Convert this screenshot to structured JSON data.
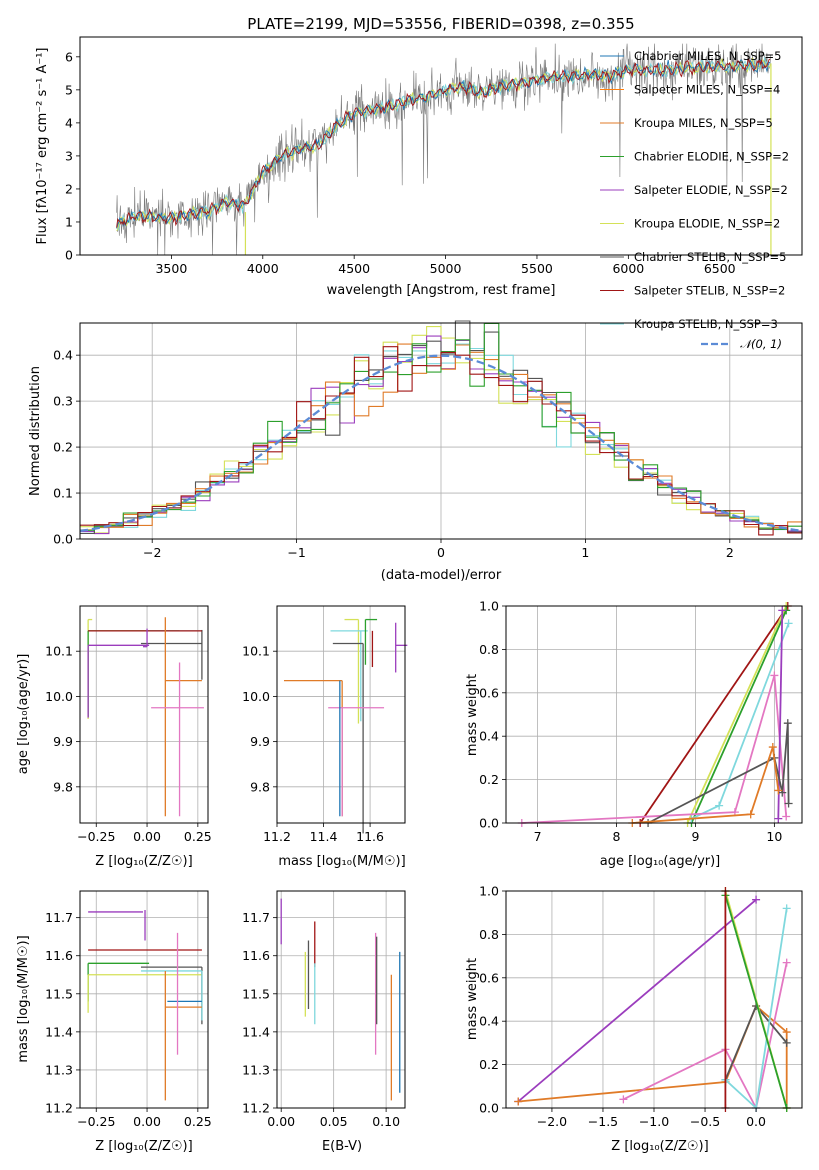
{
  "colors": {
    "chabrier_miles": "#1f77b4",
    "salpeter_miles": "#ff7f0e",
    "kroupa_miles": "#e07b28",
    "chabrier_elodie": "#2ca02c",
    "salpeter_elodie": "#9b3dbd",
    "kroupa_elodie": "#d4e157",
    "chabrier_stelib": "#555555",
    "salpeter_stelib": "#a01515",
    "kroupa_stelib": "#7fd8dd",
    "pink": "#e377c2",
    "normal": "#5b8bd6"
  },
  "chart_data": [
    {
      "id": "spectrum",
      "type": "line",
      "title": "PLATE=2199, MJD=53556, FIBERID=0398, z=0.355",
      "xlabel": "wavelength [Angstrom, rest frame]",
      "ylabel": "Flux [fλ10⁻¹⁷ erg cm⁻² s⁻¹ A⁻¹]",
      "xlim": [
        3000,
        6950
      ],
      "ylim": [
        0,
        6.6
      ],
      "xticks": [
        "3500",
        "4000",
        "4500",
        "5000",
        "5500",
        "6000",
        "6500"
      ],
      "yticks": [
        "0",
        "1",
        "2",
        "3",
        "4",
        "5",
        "6"
      ],
      "legend": [
        "Chabrier MILES, N_SSP=5",
        "Salpeter MILES, N_SSP=4",
        "Kroupa MILES, N_SSP=5",
        "Chabrier ELODIE, N_SSP=2",
        "Salpeter ELODIE, N_SSP=2",
        "Kroupa ELODIE, N_SSP=2",
        "Chabrier STELIB, N_SSP=5",
        "Salpeter STELIB, N_SSP=2",
        "Kroupa STELIB, N_SSP=3"
      ],
      "legend_location": "top-right",
      "model_continuum": [
        [
          3200,
          0.9
        ],
        [
          3300,
          1.2
        ],
        [
          3500,
          1.1
        ],
        [
          3600,
          1.25
        ],
        [
          3700,
          1.3
        ],
        [
          3800,
          1.6
        ],
        [
          3900,
          1.5
        ],
        [
          4000,
          2.5
        ],
        [
          4100,
          3.0
        ],
        [
          4200,
          3.2
        ],
        [
          4300,
          3.3
        ],
        [
          4400,
          3.9
        ],
        [
          4500,
          4.3
        ],
        [
          4600,
          4.4
        ],
        [
          4700,
          4.5
        ],
        [
          4800,
          4.7
        ],
        [
          4900,
          4.8
        ],
        [
          5000,
          5.0
        ],
        [
          5100,
          5.1
        ],
        [
          5200,
          4.9
        ],
        [
          5300,
          5.1
        ],
        [
          5400,
          5.2
        ],
        [
          5500,
          5.3
        ],
        [
          5600,
          5.4
        ],
        [
          5700,
          5.4
        ],
        [
          5800,
          5.5
        ],
        [
          5900,
          5.4
        ],
        [
          6000,
          5.6
        ],
        [
          6200,
          5.6
        ],
        [
          6400,
          5.7
        ],
        [
          6600,
          5.7
        ],
        [
          6780,
          5.8
        ]
      ]
    },
    {
      "id": "residuals",
      "type": "histogram",
      "xlabel": "(data-model)/error",
      "ylabel": "Normed distribution",
      "xlim": [
        -2.5,
        2.5
      ],
      "ylim": [
        0,
        0.47
      ],
      "xticks": [
        "−2",
        "−1",
        "0",
        "1",
        "2"
      ],
      "yticks": [
        "0.0",
        "0.1",
        "0.2",
        "0.3",
        "0.4"
      ],
      "legend": [
        "𝒩(0, 1)"
      ],
      "legend_location": "top-right",
      "bin_width": 0.1,
      "grid": true
    },
    {
      "id": "z-age",
      "type": "errorbar",
      "xlabel": "Z [log₁₀(Z/Z☉)]",
      "ylabel": "age  [log₁₀(age/yr)]",
      "xlim": [
        -0.33,
        0.3
      ],
      "ylim": [
        9.72,
        10.2
      ],
      "xticks": [
        "−0.25",
        "0.00",
        "0.25"
      ],
      "yticks": [
        "9.8",
        "9.9",
        "10.0",
        "10.1"
      ],
      "points": [
        {
          "x": -0.29,
          "y": 10.17,
          "xerr": [
            0.0,
            0.02
          ],
          "yerr": [
            0.22,
            0.0
          ],
          "c": "kroupa_elodie"
        },
        {
          "x": -0.29,
          "y": 10.145,
          "xerr": [
            0.0,
            0.45
          ],
          "yerr": [
            0.19,
            0.0
          ],
          "c": "chabrier_elodie"
        },
        {
          "x": -0.29,
          "y": 10.113,
          "xerr": [
            0.0,
            0.3
          ],
          "yerr": [
            0.16,
            0.0
          ],
          "c": "salpeter_elodie"
        },
        {
          "x": 0.27,
          "y": 10.145,
          "xerr": [
            0.27,
            0.0
          ],
          "yerr": [
            0.0,
            0.0
          ],
          "c": "kroupa_stelib"
        },
        {
          "x": 0.27,
          "y": 10.117,
          "xerr": [
            0.3,
            0.0
          ],
          "yerr": [
            0.08,
            0.03
          ],
          "c": "chabrier_stelib"
        },
        {
          "x": 0.27,
          "y": 10.145,
          "xerr": [
            0.56,
            0.0
          ],
          "yerr": [
            0.0,
            0.0
          ],
          "c": "salpeter_stelib"
        },
        {
          "x": 0.09,
          "y": 10.035,
          "xerr": [
            0.0,
            0.18
          ],
          "yerr": [
            0.3,
            0.14
          ],
          "c": "kroupa_miles"
        },
        {
          "x": 0.16,
          "y": 9.975,
          "xerr": [
            0.14,
            0.12
          ],
          "yerr": [
            0.24,
            0.1
          ],
          "c": "pink"
        },
        {
          "x": 0.0,
          "y": 10.11,
          "xerr": [
            0.02,
            0.0
          ],
          "yerr": [
            0.0,
            0.04
          ],
          "c": "salpeter_elodie"
        }
      ]
    },
    {
      "id": "mass-age",
      "type": "errorbar",
      "xlabel": "mass [log₁₀(M/M☉)]",
      "ylabel": "",
      "xlim": [
        11.2,
        11.75
      ],
      "ylim": [
        9.72,
        10.2
      ],
      "xticks": [
        "11.2",
        "11.4",
        "11.6"
      ],
      "yticks": [
        "9.8",
        "9.9",
        "10.0",
        "10.1"
      ],
      "points": [
        {
          "x": 11.55,
          "y": 10.17,
          "xerr": [
            0.06,
            0.0
          ],
          "yerr": [
            0.23,
            0.0
          ],
          "c": "kroupa_elodie"
        },
        {
          "x": 11.56,
          "y": 10.145,
          "xerr": [
            0.13,
            0.03
          ],
          "yerr": [
            0.2,
            0.0
          ],
          "c": "kroupa_stelib"
        },
        {
          "x": 11.58,
          "y": 10.17,
          "xerr": [
            0.0,
            0.05
          ],
          "yerr": [
            0.1,
            0.0
          ],
          "c": "chabrier_elodie"
        },
        {
          "x": 11.57,
          "y": 10.117,
          "xerr": [
            0.13,
            0.0
          ],
          "yerr": [
            0.42,
            0.0
          ],
          "c": "chabrier_stelib"
        },
        {
          "x": 11.61,
          "y": 10.145,
          "xerr": [
            0.0,
            0.0
          ],
          "yerr": [
            0.08,
            0.0
          ],
          "c": "salpeter_stelib"
        },
        {
          "x": 11.71,
          "y": 10.113,
          "xerr": [
            0.0,
            0.05
          ],
          "yerr": [
            0.06,
            0.05
          ],
          "c": "salpeter_elodie"
        },
        {
          "x": 11.48,
          "y": 10.035,
          "xerr": [
            0.25,
            0.0
          ],
          "yerr": [
            0.3,
            0.0
          ],
          "c": "kroupa_miles"
        },
        {
          "x": 11.48,
          "y": 9.975,
          "xerr": [
            0.06,
            0.18
          ],
          "yerr": [
            0.24,
            0.0
          ],
          "c": "pink"
        },
        {
          "x": 11.47,
          "y": 10.035,
          "xerr": [
            0.0,
            0.0
          ],
          "yerr": [
            0.3,
            0.0
          ],
          "c": "chabrier_miles"
        }
      ]
    },
    {
      "id": "age-weight",
      "type": "line",
      "xlabel": "age  [log₁₀(age/yr)]",
      "ylabel": "mass weight",
      "xlim": [
        6.6,
        10.35
      ],
      "ylim": [
        0,
        1.0
      ],
      "xticks": [
        "7",
        "8",
        "9",
        "10"
      ],
      "yticks": [
        "0.0",
        "0.2",
        "0.4",
        "0.6",
        "0.8",
        "1.0"
      ],
      "series": [
        {
          "c": "salpeter_stelib",
          "pts": [
            [
              8.3,
              0.0
            ],
            [
              10.17,
              1.0
            ]
          ]
        },
        {
          "c": "kroupa_elodie",
          "pts": [
            [
              8.9,
              0.0
            ],
            [
              10.15,
              1.0
            ]
          ]
        },
        {
          "c": "chabrier_elodie",
          "pts": [
            [
              8.95,
              0.0
            ],
            [
              10.15,
              0.98
            ]
          ]
        },
        {
          "c": "kroupa_stelib",
          "pts": [
            [
              8.95,
              0.02
            ],
            [
              9.3,
              0.08
            ],
            [
              10.18,
              0.92
            ]
          ]
        },
        {
          "c": "pink",
          "pts": [
            [
              6.8,
              0.0
            ],
            [
              9.5,
              0.05
            ],
            [
              10.0,
              0.68
            ],
            [
              10.15,
              0.03
            ]
          ]
        },
        {
          "c": "salpeter_elodie",
          "pts": [
            [
              10.05,
              0.02
            ],
            [
              10.1,
              0.98
            ]
          ]
        },
        {
          "c": "chabrier_stelib",
          "pts": [
            [
              8.4,
              0.0
            ],
            [
              10.0,
              0.3
            ],
            [
              10.1,
              0.14
            ],
            [
              10.17,
              0.46
            ],
            [
              10.18,
              0.09
            ]
          ]
        },
        {
          "c": "kroupa_miles",
          "pts": [
            [
              8.2,
              0.0
            ],
            [
              9.7,
              0.04
            ],
            [
              9.98,
              0.35
            ],
            [
              10.05,
              0.15
            ]
          ]
        }
      ]
    },
    {
      "id": "z-mass",
      "type": "errorbar",
      "xlabel": "Z [log₁₀(Z/Z☉)]",
      "ylabel": "mass [log₁₀(M/M☉)]",
      "xlim": [
        -0.33,
        0.3
      ],
      "ylim": [
        11.2,
        11.77
      ],
      "xticks": [
        "−0.25",
        "0.00",
        "0.25"
      ],
      "yticks": [
        "11.2",
        "11.3",
        "11.4",
        "11.5",
        "11.6",
        "11.7"
      ],
      "points": [
        {
          "x": -0.29,
          "y": 11.715,
          "xerr": [
            0.0,
            0.27
          ],
          "yerr": [
            0.0,
            0.0
          ],
          "c": "salpeter_elodie"
        },
        {
          "x": -0.29,
          "y": 11.615,
          "xerr": [
            0.0,
            0.56
          ],
          "yerr": [
            0.0,
            0.0
          ],
          "c": "salpeter_stelib"
        },
        {
          "x": -0.29,
          "y": 11.58,
          "xerr": [
            0.0,
            0.3
          ],
          "yerr": [
            0.1,
            0.0
          ],
          "c": "chabrier_elodie"
        },
        {
          "x": -0.29,
          "y": 11.55,
          "xerr": [
            0.0,
            0.56
          ],
          "yerr": [
            0.1,
            0.0
          ],
          "c": "kroupa_elodie"
        },
        {
          "x": 0.27,
          "y": 11.57,
          "xerr": [
            0.3,
            0.0
          ],
          "yerr": [
            0.15,
            0.0
          ],
          "c": "chabrier_stelib"
        },
        {
          "x": 0.27,
          "y": 11.56,
          "xerr": [
            0.3,
            0.0
          ],
          "yerr": [
            0.13,
            0.0
          ],
          "c": "kroupa_stelib"
        },
        {
          "x": 0.27,
          "y": 11.48,
          "xerr": [
            0.17,
            0.0
          ],
          "yerr": [
            0.0,
            0.0
          ],
          "c": "chabrier_miles"
        },
        {
          "x": 0.27,
          "y": 11.465,
          "xerr": [
            0.18,
            0.0
          ],
          "yerr": [
            0.0,
            0.0
          ],
          "c": "kroupa_miles"
        },
        {
          "x": 0.09,
          "y": 11.46,
          "xerr": [
            0.0,
            0.0
          ],
          "yerr": [
            0.24,
            0.1
          ],
          "c": "kroupa_miles"
        },
        {
          "x": 0.15,
          "y": 11.55,
          "xerr": [
            0.0,
            0.0
          ],
          "yerr": [
            0.21,
            0.11
          ],
          "c": "pink"
        },
        {
          "x": -0.01,
          "y": 11.72,
          "xerr": [
            0.0,
            0.0
          ],
          "yerr": [
            0.08,
            0.0
          ],
          "c": "salpeter_elodie"
        }
      ]
    },
    {
      "id": "ebv-mass",
      "type": "errorbar",
      "xlabel": "E(B-V)",
      "ylabel": "",
      "xlim": [
        -0.004,
        0.118
      ],
      "ylim": [
        11.2,
        11.77
      ],
      "xticks": [
        "0.00",
        "0.05",
        "0.10"
      ],
      "yticks": [
        "11.2",
        "11.3",
        "11.4",
        "11.5",
        "11.6",
        "11.7"
      ],
      "points": [
        {
          "x": 0.0,
          "y": 11.72,
          "xerr": [
            0.0,
            0.0
          ],
          "yerr": [
            0.09,
            0.03
          ],
          "c": "salpeter_elodie"
        },
        {
          "x": 0.023,
          "y": 11.56,
          "xerr": [
            0.0,
            0.0
          ],
          "yerr": [
            0.12,
            0.05
          ],
          "c": "kroupa_elodie"
        },
        {
          "x": 0.026,
          "y": 11.58,
          "xerr": [
            0.0,
            0.0
          ],
          "yerr": [
            0.12,
            0.06
          ],
          "c": "chabrier_stelib"
        },
        {
          "x": 0.032,
          "y": 11.62,
          "xerr": [
            0.0,
            0.0
          ],
          "yerr": [
            0.05,
            0.07
          ],
          "c": "salpeter_stelib"
        },
        {
          "x": 0.032,
          "y": 11.52,
          "xerr": [
            0.0,
            0.0
          ],
          "yerr": [
            0.1,
            0.06
          ],
          "c": "kroupa_stelib"
        },
        {
          "x": 0.09,
          "y": 11.55,
          "xerr": [
            0.0,
            0.0
          ],
          "yerr": [
            0.21,
            0.11
          ],
          "c": "pink"
        },
        {
          "x": 0.091,
          "y": 11.55,
          "xerr": [
            0.0,
            0.0
          ],
          "yerr": [
            0.13,
            0.1
          ],
          "c": "chabrier_stelib"
        },
        {
          "x": 0.105,
          "y": 11.4,
          "xerr": [
            0.0,
            0.0
          ],
          "yerr": [
            0.18,
            0.15
          ],
          "c": "kroupa_miles"
        },
        {
          "x": 0.113,
          "y": 11.42,
          "xerr": [
            0.0,
            0.0
          ],
          "yerr": [
            0.18,
            0.19
          ],
          "c": "chabrier_miles"
        }
      ]
    },
    {
      "id": "z-weight",
      "type": "line",
      "xlabel": "Z [log₁₀(Z/Z☉)]",
      "ylabel": "mass weight",
      "xlim": [
        -2.45,
        0.45
      ],
      "ylim": [
        0,
        1.0
      ],
      "xticks": [
        "−2.0",
        "−1.5",
        "−1.0",
        "−0.5",
        "0.0"
      ],
      "yticks": [
        "0.0",
        "0.2",
        "0.4",
        "0.6",
        "0.8",
        "1.0"
      ],
      "series": [
        {
          "c": "salpeter_elodie",
          "pts": [
            [
              -2.33,
              0.03
            ],
            [
              0.0,
              0.96
            ]
          ]
        },
        {
          "c": "kroupa_miles",
          "pts": [
            [
              -2.33,
              0.03
            ],
            [
              -0.3,
              0.12
            ],
            [
              0.0,
              0.47
            ],
            [
              0.3,
              0.35
            ],
            [
              0.3,
              0.0
            ]
          ]
        },
        {
          "c": "pink",
          "pts": [
            [
              -1.3,
              0.04
            ],
            [
              -0.3,
              0.27
            ],
            [
              0.0,
              0.0
            ],
            [
              0.3,
              0.67
            ]
          ]
        },
        {
          "c": "chabrier_stelib",
          "pts": [
            [
              -0.3,
              0.13
            ],
            [
              0.0,
              0.47
            ],
            [
              0.3,
              0.3
            ]
          ]
        },
        {
          "c": "kroupa_stelib",
          "pts": [
            [
              -0.3,
              0.13
            ],
            [
              0.0,
              0.0
            ],
            [
              0.3,
              0.92
            ]
          ]
        },
        {
          "c": "kroupa_elodie",
          "pts": [
            [
              -0.3,
              1.0
            ],
            [
              0.3,
              0.0
            ]
          ]
        },
        {
          "c": "chabrier_elodie",
          "pts": [
            [
              -0.3,
              0.98
            ],
            [
              0.3,
              0.0
            ]
          ]
        },
        {
          "c": "salpeter_stelib",
          "pts": [
            [
              -0.3,
              0.0
            ],
            [
              -0.3,
              1.0
            ]
          ]
        }
      ]
    }
  ]
}
